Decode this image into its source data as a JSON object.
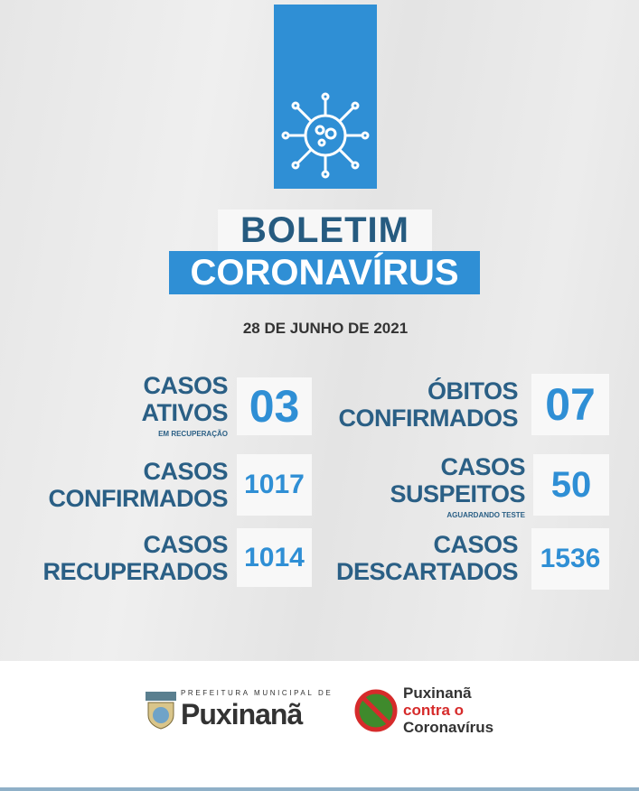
{
  "header": {
    "title_line1": "BOLETIM",
    "title_line2": "CORONAVÍRUS",
    "date": "28 DE JUNHO DE 2021",
    "icon": "virus-icon"
  },
  "stats": [
    {
      "label1": "CASOS",
      "label2": "ATIVOS",
      "note": "EM RECUPERAÇÃO",
      "value": "03"
    },
    {
      "label1": "ÓBITOS",
      "label2": "CONFIRMADOS",
      "note": "",
      "value": "07"
    },
    {
      "label1": "CASOS",
      "label2": "CONFIRMADOS",
      "note": "",
      "value": "1017"
    },
    {
      "label1": "CASOS",
      "label2": "SUSPEITOS",
      "note": "AGUARDANDO TESTE",
      "value": "50"
    },
    {
      "label1": "CASOS",
      "label2": "RECUPERADOS",
      "note": "",
      "value": "1014"
    },
    {
      "label1": "CASOS",
      "label2": "DESCARTADOS",
      "note": "",
      "value": "1536"
    }
  ],
  "footer": {
    "logo1_top": "PREFEITURA MUNICIPAL DE",
    "logo1_name": "Puxinanã",
    "logo2_line1": "Puxinanã",
    "logo2_line2": "contra o",
    "logo2_line3": "Coronavírus"
  },
  "colors": {
    "accent": "#2f8fd5",
    "label": "#2a5f85",
    "background": "#e9e9e9",
    "red": "#d62b2b"
  }
}
